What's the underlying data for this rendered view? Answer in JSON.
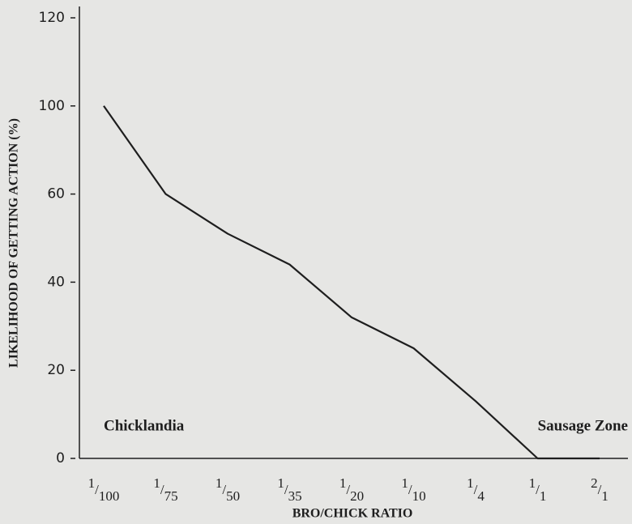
{
  "chart_data": {
    "type": "line",
    "x_label": "BRO/CHICK RATIO",
    "y_label": "LIKELIHOOD OF GETTING ACTION (%)",
    "categories": [
      "1/100",
      "1/75",
      "1/50",
      "1/35",
      "1/20",
      "1/10",
      "1/4",
      "1/1",
      "2/1"
    ],
    "values": [
      100,
      60,
      51,
      44,
      32,
      25,
      13,
      0,
      0
    ],
    "color": "#1e1e1e",
    "ylim": [
      0,
      120
    ],
    "yticks": [
      0,
      20,
      40,
      60,
      100,
      120
    ],
    "annotations": [
      "Chicklandia",
      "Sausage Zone"
    ]
  }
}
